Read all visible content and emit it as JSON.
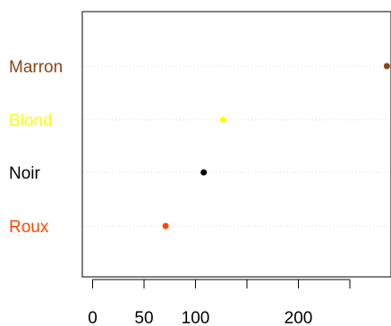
{
  "chart_data": {
    "type": "scatter",
    "title": "",
    "xlabel": "",
    "ylabel": "",
    "categories": [
      "Marron",
      "Blond",
      "Noir",
      "Roux"
    ],
    "values": [
      286,
      127,
      108,
      71
    ],
    "colors": [
      "#8B4513",
      "#FFFF00",
      "#000000",
      "#FF4500"
    ],
    "xticks": [
      0,
      50,
      100,
      150,
      200,
      250
    ],
    "xtick_labels": [
      "0",
      "50",
      "100",
      "",
      "200",
      ""
    ],
    "xlim": [
      -10,
      290
    ],
    "grid": "dotted horizontal guide lines",
    "legend": "none"
  }
}
